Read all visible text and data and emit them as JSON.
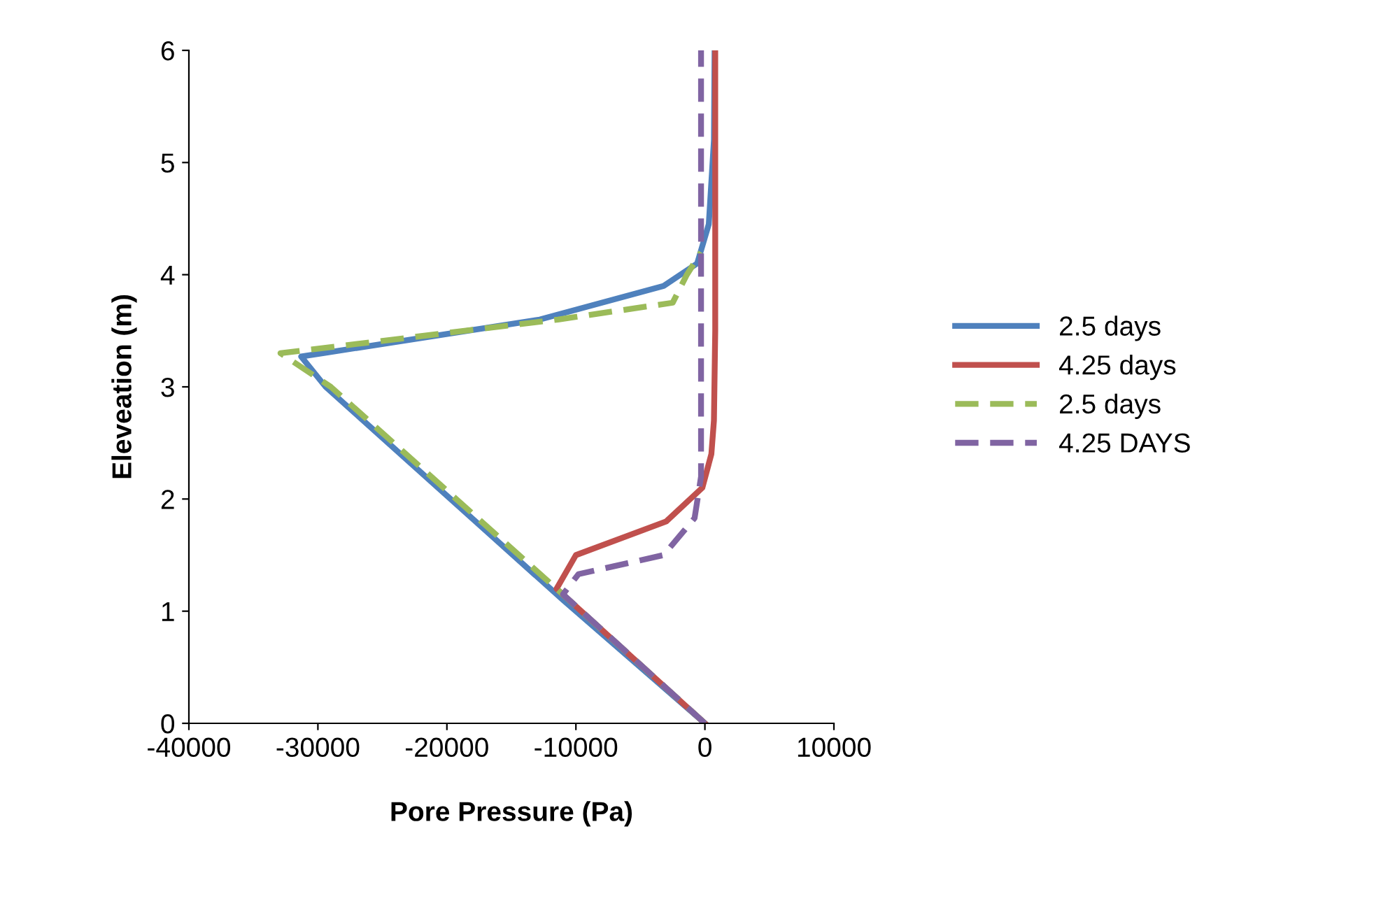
{
  "chart_data": {
    "type": "line",
    "xlabel": "Pore Pressure (Pa)",
    "ylabel": "Eleveation (m)",
    "xlim": [
      -40000,
      10000
    ],
    "xticks": [
      -40000,
      -30000,
      -20000,
      -10000,
      0,
      10000
    ],
    "ylim": [
      0,
      6
    ],
    "yticks": [
      0,
      1,
      2,
      3,
      4,
      5,
      6
    ],
    "grid": false,
    "legend": "right",
    "marker": "none",
    "series": [
      {
        "name": "2.5 days",
        "color": "#4f81bd",
        "line_style": "solid",
        "x": [
          0,
          -11000,
          -29400,
          -31300,
          -12800,
          -3200,
          -600,
          300,
          700,
          750
        ],
        "values": [
          0,
          1.1,
          3.0,
          3.27,
          3.6,
          3.9,
          4.1,
          4.45,
          5.2,
          6
        ]
      },
      {
        "name": "4.25 days",
        "color": "#c0504d",
        "line_style": "solid",
        "x": [
          0,
          -11500,
          -10000,
          -3000,
          -200,
          500,
          700,
          800,
          800
        ],
        "values": [
          0,
          1.2,
          1.5,
          1.8,
          2.1,
          2.4,
          2.7,
          3.5,
          6
        ]
      },
      {
        "name": "2.5 days",
        "color": "#9bbb59",
        "line_style": "dashed",
        "x": [
          0,
          -11500,
          -29000,
          -32900,
          -11400,
          -2500,
          -1400,
          -300
        ],
        "values": [
          0,
          1.2,
          3.0,
          3.3,
          3.6,
          3.75,
          4.0,
          4.2
        ]
      },
      {
        "name": "4.25 DAYS",
        "color": "#8064a2",
        "line_style": "dashed",
        "x": [
          0,
          -11000,
          -9800,
          -3200,
          -800,
          -300,
          -300
        ],
        "values": [
          0,
          1.15,
          1.33,
          1.5,
          1.83,
          2.2,
          6
        ]
      }
    ]
  }
}
